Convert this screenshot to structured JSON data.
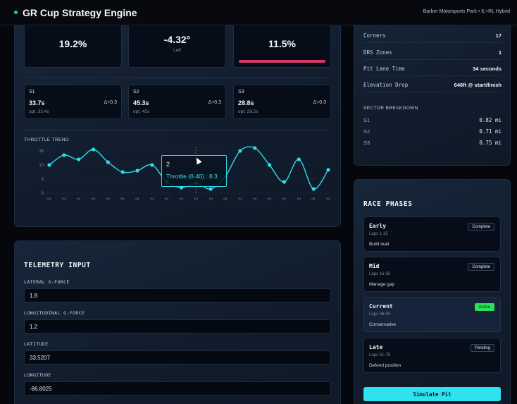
{
  "header": {
    "title": "GR Cup Strategy Engine",
    "subtitle": "Barber Motorsports Park • IL+RL Hybrid"
  },
  "metrics": [
    {
      "value": "19.2%",
      "sub": ""
    },
    {
      "value": "-4.32°",
      "sub": "Left"
    },
    {
      "value": "11.5%",
      "sub": "",
      "bar_color": "#d83a68"
    }
  ],
  "sectors": [
    {
      "name": "S1",
      "time": "33.7s",
      "delta": "Δ+0.3",
      "opt": "opt: 33.4s"
    },
    {
      "name": "S2",
      "time": "45.3s",
      "delta": "Δ+0.3",
      "opt": "opt: 45s"
    },
    {
      "name": "S3",
      "time": "28.8s",
      "delta": "Δ+0.3",
      "opt": "opt: 28.5s"
    }
  ],
  "throttle_chart": {
    "title": "THROTTLE TREND"
  },
  "chart_data": {
    "type": "line",
    "title": "THROTTLE TREND",
    "xlabel": "",
    "ylabel": "",
    "x_tick_labels": [
      "2",
      "2",
      "2",
      "2",
      "2",
      "2",
      "2",
      "2",
      "2",
      "2",
      "2",
      "2",
      "2",
      "2",
      "2",
      "2",
      "2",
      "2",
      "2",
      "2"
    ],
    "series": [
      {
        "name": "Throttle (0-40)",
        "values": [
          10,
          13.5,
          12,
          15.5,
          11,
          7.5,
          8,
          10,
          4,
          2,
          3.5,
          1.5,
          6,
          15,
          16,
          10,
          4,
          12,
          1.5,
          8.3
        ]
      }
    ],
    "yticks": [
      0,
      5,
      10,
      15
    ],
    "ylim": [
      0,
      16.5
    ],
    "line_color": "#33dbe8",
    "tooltip": {
      "label": "2",
      "series": "Throttle (0-40)",
      "value": "8.3"
    }
  },
  "telemetry": {
    "heading": "TELEMETRY INPUT",
    "fields": [
      {
        "label": "LATERAL G-FORCE",
        "value": "1.8"
      },
      {
        "label": "LONGITUDINAL G-FORCE",
        "value": "1.2"
      },
      {
        "label": "LATITUDE",
        "value": "33.5207"
      },
      {
        "label": "LONGITUDE",
        "value": "-86.8025"
      }
    ]
  },
  "track": {
    "stats": [
      {
        "key": "Corners",
        "value": "17"
      },
      {
        "key": "DRS Zones",
        "value": "1"
      },
      {
        "key": "Pit Lane Time",
        "value": "34 seconds"
      },
      {
        "key": "Elevation Drop",
        "value": "646ft @ start/finish"
      }
    ],
    "sector_breakdown_title": "SECTOR BREAKDOWN",
    "sector_breakdown": [
      {
        "key": "S1",
        "value": "0.82 mi"
      },
      {
        "key": "S2",
        "value": "0.71 mi"
      },
      {
        "key": "S3",
        "value": "0.75 mi"
      }
    ]
  },
  "race_phases": {
    "heading": "RACE PHASES",
    "phases": [
      {
        "name": "Early",
        "laps": "Laps 1-15",
        "desc": "Build lead",
        "status": "Complete"
      },
      {
        "name": "Mid",
        "laps": "Laps 16-35",
        "desc": "Manage gap",
        "status": "Complete"
      },
      {
        "name": "Current",
        "laps": "Laps 36-50",
        "desc": "Conservative",
        "status": "Active"
      },
      {
        "name": "Late",
        "laps": "Laps 51-75",
        "desc": "Defend position",
        "status": "Pending"
      }
    ],
    "simulate_label": "Simulate Pit"
  },
  "colors": {
    "accent": "#2ee2f0",
    "active": "#28e05a",
    "warning_bar": "#d83a68"
  }
}
